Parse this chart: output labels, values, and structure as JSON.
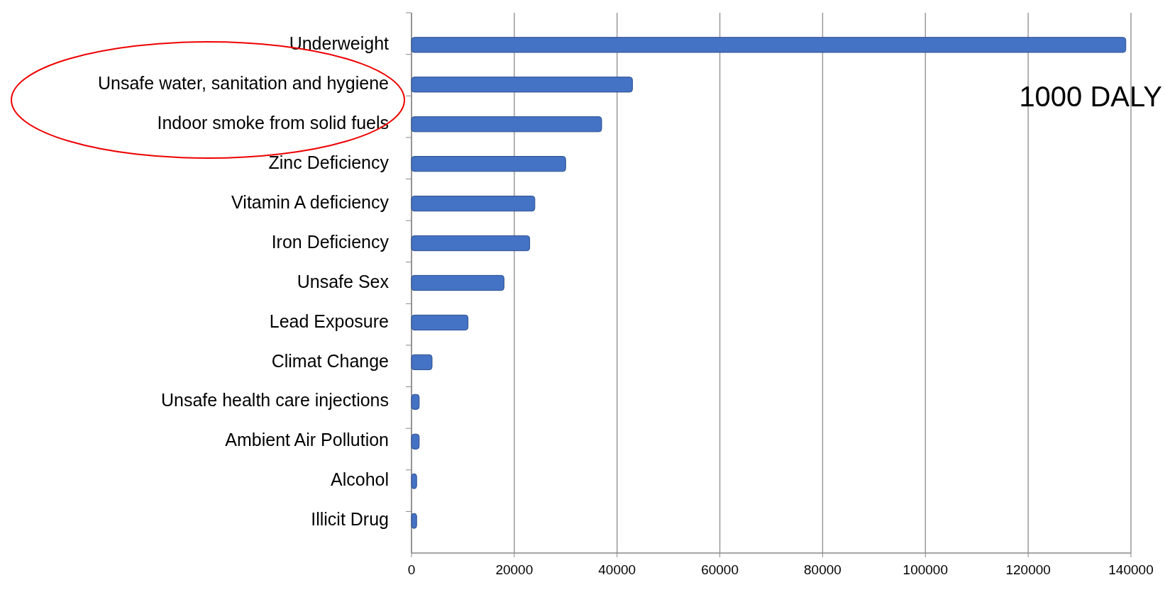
{
  "chart_data": {
    "type": "bar",
    "orientation": "horizontal",
    "categories": [
      "Underweight",
      "Unsafe water, sanitation and hygiene",
      "Indoor smoke from solid fuels",
      "Zinc Deficiency",
      "Vitamin A deficiency",
      "Iron Deficiency",
      "Unsafe Sex",
      "Lead Exposure",
      "Climat Change",
      "Unsafe health care injections",
      "Ambient Air Pollution",
      "Alcohol",
      "Illicit Drug"
    ],
    "values": [
      139000,
      43000,
      37000,
      30000,
      24000,
      23000,
      18000,
      11000,
      4000,
      1500,
      1500,
      1000,
      1000
    ],
    "color": "#4472c4",
    "xlim": [
      0,
      140000
    ],
    "xticks": [
      0,
      20000,
      40000,
      60000,
      80000,
      100000,
      120000,
      140000
    ],
    "grid": "x",
    "annotations": [
      "1000 DALY"
    ]
  }
}
